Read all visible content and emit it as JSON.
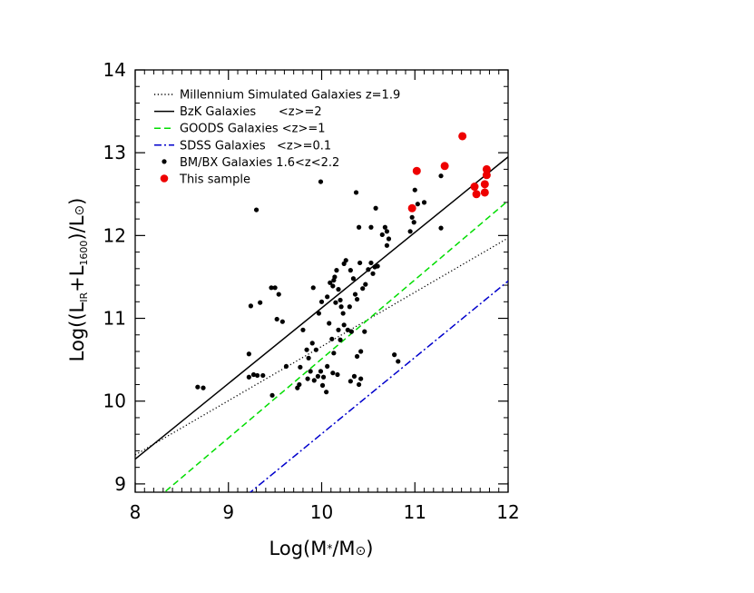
{
  "chart_data": {
    "type": "scatter",
    "title": "",
    "xlabel": {
      "main": "Log(M",
      "sub": "*",
      "after": "/M",
      "unit": "⊙",
      "close": ")"
    },
    "ylabel": {
      "p1": "Log((L",
      "sub1": "IR",
      "p2": "+L",
      "sub2": "1600",
      "p3": ")/L",
      "unit": "⊙",
      "close": ")"
    },
    "xlim": [
      8,
      12
    ],
    "ylim": [
      8.9,
      14
    ],
    "xticks": [
      "8",
      "9",
      "10",
      "11",
      "12"
    ],
    "yticks": [
      "9",
      "10",
      "11",
      "12",
      "13",
      "14"
    ],
    "grid": false,
    "legend_position": "top-left",
    "colors": {
      "black": "#000000",
      "green": "#00dd00",
      "blue": "#0000cc",
      "red": "#ee0000"
    },
    "legend": [
      {
        "label": "Millennium Simulated Galaxies z=1.9",
        "style": "dotted",
        "color": "#000000"
      },
      {
        "label": "BzK Galaxies      <z>=2",
        "style": "solid",
        "color": "#000000"
      },
      {
        "label": "GOODS Galaxies <z>=1",
        "style": "dashed",
        "color": "#00dd00"
      },
      {
        "label": "SDSS Galaxies   <z>=0.1",
        "style": "dashdot",
        "color": "#0000cc"
      },
      {
        "label": "BM/BX Galaxies 1.6<z<2.2",
        "style": "dot",
        "color": "#000000"
      },
      {
        "label": "This sample",
        "style": "bigdot",
        "color": "#ee0000"
      }
    ],
    "series": [
      {
        "name": "Millennium Simulated Galaxies z=1.9",
        "kind": "line",
        "style": "dotted",
        "color": "#000000",
        "x": [
          8,
          12
        ],
        "y": [
          9.35,
          11.97
        ]
      },
      {
        "name": "BzK Galaxies      <z>=2",
        "kind": "line",
        "style": "solid",
        "color": "#000000",
        "x": [
          8,
          12
        ],
        "y": [
          9.3,
          12.95
        ]
      },
      {
        "name": "GOODS Galaxies <z>=1",
        "kind": "line",
        "style": "dashed",
        "color": "#00dd00",
        "x": [
          8,
          12
        ],
        "y": [
          8.6,
          12.42
        ]
      },
      {
        "name": "SDSS Galaxies   <z>=0.1",
        "kind": "line",
        "style": "dashdot",
        "color": "#0000cc",
        "x": [
          8,
          12
        ],
        "y": [
          7.76,
          11.45
        ]
      },
      {
        "name": "BM/BX Galaxies 1.6<z<2.2",
        "kind": "points",
        "color": "#000000",
        "size": 2.6,
        "points": [
          [
            8.67,
            10.17
          ],
          [
            8.73,
            10.16
          ],
          [
            9.22,
            10.57
          ],
          [
            9.24,
            11.15
          ],
          [
            9.3,
            12.31
          ],
          [
            9.34,
            11.19
          ],
          [
            9.46,
            11.37
          ],
          [
            9.5,
            11.37
          ],
          [
            9.52,
            10.99
          ],
          [
            9.54,
            11.29
          ],
          [
            9.58,
            10.96
          ],
          [
            9.22,
            10.29
          ],
          [
            9.27,
            10.32
          ],
          [
            9.31,
            10.31
          ],
          [
            9.37,
            10.31
          ],
          [
            9.47,
            10.07
          ],
          [
            9.62,
            10.42
          ],
          [
            9.74,
            10.16
          ],
          [
            9.76,
            10.2
          ],
          [
            9.77,
            10.41
          ],
          [
            9.85,
            10.27
          ],
          [
            9.88,
            10.36
          ],
          [
            9.9,
            10.7
          ],
          [
            9.92,
            10.25
          ],
          [
            9.94,
            10.62
          ],
          [
            9.96,
            10.3
          ],
          [
            9.99,
            10.36
          ],
          [
            10.02,
            10.29
          ],
          [
            10.01,
            10.19
          ],
          [
            10.05,
            10.11
          ],
          [
            10.06,
            10.42
          ],
          [
            10.12,
            10.34
          ],
          [
            10.17,
            10.32
          ],
          [
            9.91,
            11.37
          ],
          [
            9.97,
            11.06
          ],
          [
            10.0,
            11.2
          ],
          [
            10.06,
            11.26
          ],
          [
            10.09,
            11.43
          ],
          [
            10.12,
            11.39
          ],
          [
            10.14,
            11.5
          ],
          [
            10.15,
            11.19
          ],
          [
            10.16,
            11.58
          ],
          [
            10.18,
            11.35
          ],
          [
            10.2,
            11.22
          ],
          [
            10.21,
            11.14
          ],
          [
            10.23,
            11.06
          ],
          [
            10.24,
            11.66
          ],
          [
            10.26,
            11.7
          ],
          [
            10.28,
            10.86
          ],
          [
            10.3,
            11.14
          ],
          [
            10.31,
            11.58
          ],
          [
            10.34,
            11.48
          ],
          [
            10.36,
            11.29
          ],
          [
            10.38,
            11.23
          ],
          [
            10.41,
            11.67
          ],
          [
            10.44,
            11.36
          ],
          [
            10.47,
            11.41
          ],
          [
            10.5,
            11.59
          ],
          [
            10.53,
            11.67
          ],
          [
            10.55,
            11.54
          ],
          [
            10.57,
            11.62
          ],
          [
            10.6,
            11.63
          ],
          [
            10.13,
            11.46
          ],
          [
            10.08,
            10.94
          ],
          [
            10.11,
            10.75
          ],
          [
            10.13,
            10.58
          ],
          [
            10.18,
            10.86
          ],
          [
            10.2,
            10.74
          ],
          [
            10.24,
            10.92
          ],
          [
            10.32,
            10.84
          ],
          [
            10.38,
            10.54
          ],
          [
            10.42,
            10.6
          ],
          [
            10.46,
            10.84
          ],
          [
            9.8,
            10.86
          ],
          [
            9.84,
            10.62
          ],
          [
            9.86,
            10.52
          ],
          [
            10.31,
            10.24
          ],
          [
            10.35,
            10.3
          ],
          [
            10.4,
            10.2
          ],
          [
            10.42,
            10.27
          ],
          [
            9.99,
            12.65
          ],
          [
            10.37,
            12.52
          ],
          [
            10.4,
            12.1
          ],
          [
            10.53,
            12.1
          ],
          [
            10.58,
            12.33
          ],
          [
            10.65,
            12.01
          ],
          [
            10.68,
            12.1
          ],
          [
            10.7,
            12.05
          ],
          [
            10.72,
            11.96
          ],
          [
            10.7,
            11.88
          ],
          [
            10.78,
            10.56
          ],
          [
            10.82,
            10.48
          ],
          [
            10.95,
            12.05
          ],
          [
            10.97,
            12.22
          ],
          [
            10.99,
            12.16
          ],
          [
            11.0,
            12.55
          ],
          [
            11.03,
            12.38
          ],
          [
            11.1,
            12.4
          ],
          [
            11.28,
            12.09
          ],
          [
            11.28,
            12.72
          ]
        ]
      },
      {
        "name": "This sample",
        "kind": "points",
        "color": "#ee0000",
        "size": 4.5,
        "points": [
          [
            10.97,
            12.33
          ],
          [
            11.02,
            12.78
          ],
          [
            11.32,
            12.84
          ],
          [
            11.51,
            13.2
          ],
          [
            11.64,
            12.59
          ],
          [
            11.66,
            12.5
          ],
          [
            11.75,
            12.52
          ],
          [
            11.75,
            12.62
          ],
          [
            11.77,
            12.73
          ],
          [
            11.77,
            12.8
          ]
        ]
      }
    ]
  }
}
